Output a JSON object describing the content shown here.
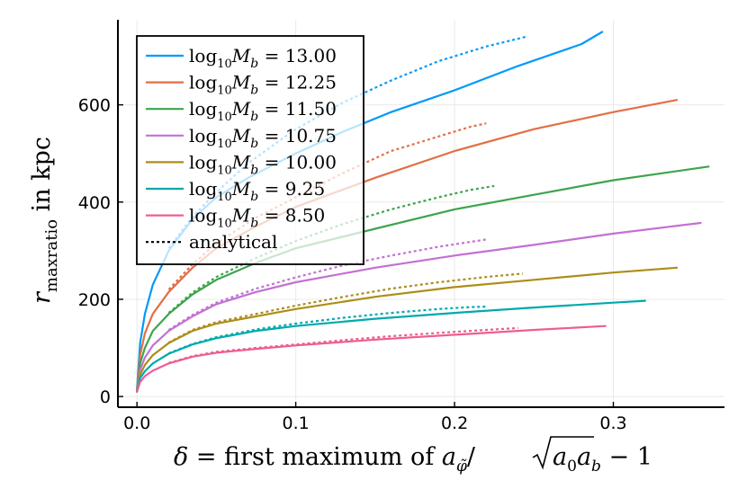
{
  "chart_data": {
    "type": "line",
    "title": "",
    "xlabel": "δ = first maximum of a_φ̃/√(a₀a_b) − 1",
    "xlabel_parts": {
      "lhs": "δ",
      "eq": " = first maximum of ",
      "a": "a",
      "a_sub": "φ̃",
      "slash": "/",
      "sqrt_a0": "a",
      "sqrt_a0_sub": "0",
      "sqrt_ab": "a",
      "sqrt_ab_sub": "b",
      "tail": " − 1"
    },
    "ylabel": "r_maxratio in kpc",
    "ylabel_parts": {
      "r": "r",
      "sub": "maxratio",
      "rest": " in kpc"
    },
    "xlim": [
      -0.012,
      0.37
    ],
    "ylim": [
      -22,
      775
    ],
    "xticks": [
      0.0,
      0.1,
      0.2,
      0.3
    ],
    "xtick_labels": [
      "0.0",
      "0.1",
      "0.2",
      "0.3"
    ],
    "yticks": [
      0,
      200,
      400,
      600
    ],
    "ytick_labels": [
      "0",
      "200",
      "400",
      "600"
    ],
    "grid": true,
    "legend_position": "top-left",
    "series": [
      {
        "name": "log10 Mb = 13.00",
        "label_value": "13.00",
        "color": "#009af9",
        "style": "solid",
        "x": [
          0.0,
          0.002,
          0.005,
          0.01,
          0.02,
          0.035,
          0.05,
          0.07,
          0.1,
          0.13,
          0.16,
          0.2,
          0.24,
          0.28,
          0.293
        ],
        "y": [
          15,
          110,
          170,
          230,
          300,
          365,
          410,
          450,
          500,
          545,
          585,
          630,
          680,
          725,
          750
        ]
      },
      {
        "name": "log10 Mb = 13.00 analytical",
        "color": "#009af9",
        "style": "dotted",
        "x": [
          0.02,
          0.035,
          0.05,
          0.07,
          0.1,
          0.13,
          0.16,
          0.19,
          0.22,
          0.245
        ],
        "y": [
          305,
          370,
          420,
          480,
          550,
          605,
          650,
          690,
          720,
          740
        ]
      },
      {
        "name": "log10 Mb = 12.25",
        "label_value": "12.25",
        "color": "#e26f46",
        "style": "solid",
        "x": [
          0.0,
          0.002,
          0.005,
          0.01,
          0.02,
          0.035,
          0.05,
          0.075,
          0.1,
          0.15,
          0.2,
          0.25,
          0.3,
          0.34
        ],
        "y": [
          12,
          85,
          130,
          170,
          215,
          265,
          305,
          350,
          390,
          450,
          505,
          550,
          585,
          610
        ]
      },
      {
        "name": "log10 Mb = 12.25 analytical",
        "color": "#e26f46",
        "style": "dotted",
        "x": [
          0.02,
          0.035,
          0.05,
          0.075,
          0.1,
          0.13,
          0.16,
          0.19,
          0.21,
          0.22
        ],
        "y": [
          220,
          272,
          315,
          368,
          410,
          460,
          505,
          535,
          555,
          562
        ]
      },
      {
        "name": "log10 Mb = 11.50",
        "label_value": "11.50",
        "color": "#3da44d",
        "style": "solid",
        "x": [
          0.0,
          0.002,
          0.005,
          0.01,
          0.02,
          0.035,
          0.05,
          0.075,
          0.1,
          0.15,
          0.2,
          0.25,
          0.3,
          0.36
        ],
        "y": [
          10,
          68,
          100,
          135,
          170,
          210,
          240,
          275,
          305,
          345,
          385,
          415,
          445,
          473
        ]
      },
      {
        "name": "log10 Mb = 11.50 analytical",
        "color": "#3da44d",
        "style": "dotted",
        "x": [
          0.02,
          0.035,
          0.05,
          0.075,
          0.1,
          0.13,
          0.16,
          0.19,
          0.21,
          0.225
        ],
        "y": [
          172,
          214,
          246,
          285,
          320,
          355,
          385,
          410,
          425,
          433
        ]
      },
      {
        "name": "log10 Mb = 10.75",
        "label_value": "10.75",
        "color": "#c271d2",
        "style": "solid",
        "x": [
          0.0,
          0.002,
          0.005,
          0.01,
          0.02,
          0.035,
          0.05,
          0.075,
          0.1,
          0.15,
          0.2,
          0.25,
          0.3,
          0.355
        ],
        "y": [
          10,
          55,
          80,
          105,
          135,
          165,
          190,
          215,
          235,
          265,
          290,
          312,
          335,
          357
        ]
      },
      {
        "name": "log10 Mb = 10.75 analytical",
        "color": "#c271d2",
        "style": "dotted",
        "x": [
          0.02,
          0.035,
          0.05,
          0.075,
          0.1,
          0.13,
          0.16,
          0.19,
          0.21,
          0.22
        ],
        "y": [
          137,
          168,
          193,
          222,
          245,
          270,
          290,
          308,
          318,
          323
        ]
      },
      {
        "name": "log10 Mb = 10.00",
        "label_value": "10.00",
        "color": "#ac8d18",
        "style": "solid",
        "x": [
          0.0,
          0.002,
          0.005,
          0.01,
          0.02,
          0.035,
          0.05,
          0.075,
          0.1,
          0.15,
          0.2,
          0.25,
          0.3,
          0.34
        ],
        "y": [
          10,
          45,
          65,
          85,
          110,
          135,
          150,
          165,
          180,
          205,
          225,
          240,
          255,
          265
        ]
      },
      {
        "name": "log10 Mb = 10.00 analytical",
        "color": "#ac8d18",
        "style": "dotted",
        "x": [
          0.02,
          0.035,
          0.05,
          0.075,
          0.1,
          0.13,
          0.16,
          0.19,
          0.22,
          0.243
        ],
        "y": [
          111,
          137,
          153,
          170,
          187,
          205,
          222,
          235,
          246,
          253
        ]
      },
      {
        "name": "log10 Mb = 9.25",
        "label_value": "9.25",
        "color": "#00a9ad",
        "style": "solid",
        "x": [
          0.0,
          0.002,
          0.005,
          0.01,
          0.02,
          0.035,
          0.05,
          0.075,
          0.1,
          0.15,
          0.2,
          0.25,
          0.3,
          0.32
        ],
        "y": [
          10,
          38,
          52,
          68,
          88,
          107,
          120,
          135,
          145,
          160,
          172,
          183,
          193,
          197
        ]
      },
      {
        "name": "log10 Mb = 9.25 analytical",
        "color": "#00a9ad",
        "style": "dotted",
        "x": [
          0.02,
          0.035,
          0.05,
          0.075,
          0.1,
          0.13,
          0.16,
          0.19,
          0.21,
          0.22
        ],
        "y": [
          89,
          108,
          122,
          138,
          150,
          162,
          172,
          180,
          184,
          185
        ]
      },
      {
        "name": "log10 Mb = 8.50",
        "label_value": "8.50",
        "color": "#ed5d92",
        "style": "solid",
        "x": [
          0.0,
          0.002,
          0.005,
          0.01,
          0.02,
          0.035,
          0.05,
          0.075,
          0.1,
          0.15,
          0.2,
          0.25,
          0.295
        ],
        "y": [
          10,
          30,
          42,
          53,
          68,
          82,
          90,
          98,
          105,
          117,
          127,
          137,
          145
        ]
      },
      {
        "name": "log10 Mb = 8.50 analytical",
        "color": "#ed5d92",
        "style": "dotted",
        "x": [
          0.02,
          0.035,
          0.05,
          0.075,
          0.1,
          0.13,
          0.16,
          0.19,
          0.22,
          0.24
        ],
        "y": [
          69,
          83,
          92,
          100,
          107,
          116,
          124,
          131,
          137,
          141
        ]
      }
    ],
    "legend": {
      "entries": [
        {
          "value": "13.00",
          "color": "#009af9",
          "style": "solid"
        },
        {
          "value": "12.25",
          "color": "#e26f46",
          "style": "solid"
        },
        {
          "value": "11.50",
          "color": "#3da44d",
          "style": "solid"
        },
        {
          "value": "10.75",
          "color": "#c271d2",
          "style": "solid"
        },
        {
          "value": "10.00",
          "color": "#ac8d18",
          "style": "solid"
        },
        {
          "value": "9.25",
          "color": "#00a9ad",
          "style": "solid"
        },
        {
          "value": "8.50",
          "color": "#ed5d92",
          "style": "solid"
        }
      ],
      "label_log": "log",
      "label_log_sub": "10",
      "label_M": "M",
      "label_M_sub": "b",
      "label_eq": " = ",
      "analytical": {
        "label": "analytical",
        "color": "#000000",
        "style": "dotted"
      }
    }
  }
}
